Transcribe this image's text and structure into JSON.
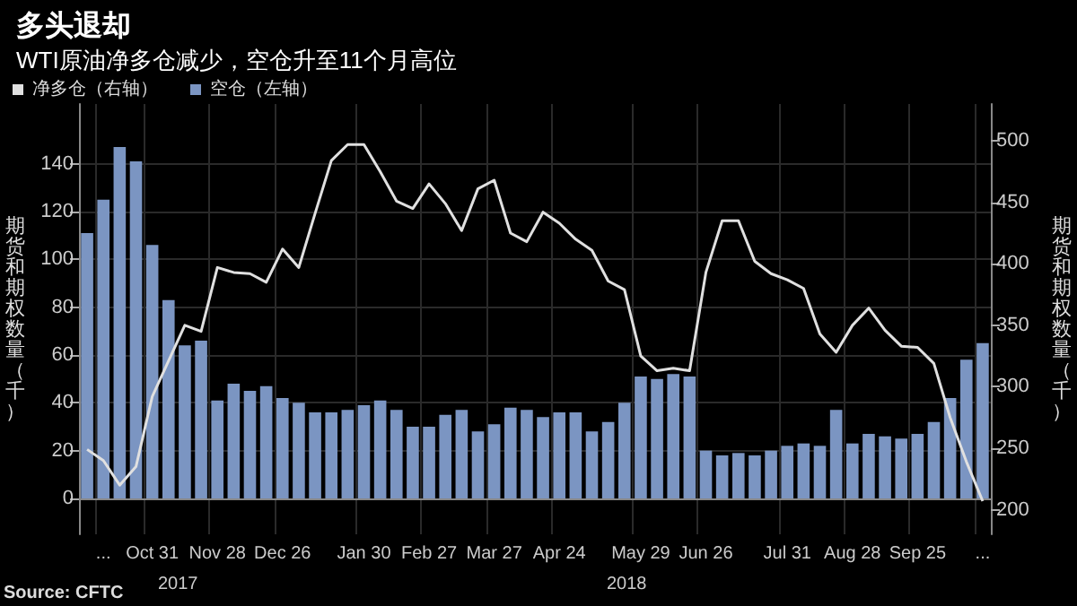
{
  "chart_data": {
    "type": "bar",
    "title": "多头退却",
    "subtitle": "WTI原油净多仓减少，空仓升至11个月高位",
    "ylabel": "期货和期权数量（千）",
    "y2label": "期货和期权数量（千）",
    "categories": [
      null,
      "...",
      null,
      null,
      "Oct 31",
      null,
      null,
      null,
      "Nov 28",
      null,
      null,
      null,
      "Dec 26",
      null,
      null,
      null,
      null,
      "Jan 30",
      null,
      null,
      null,
      "Feb 27",
      null,
      null,
      null,
      "Mar 27",
      null,
      null,
      null,
      "Apr 24",
      null,
      null,
      null,
      null,
      "May 29",
      null,
      null,
      null,
      "Jun 26",
      null,
      null,
      null,
      null,
      "Jul 31",
      null,
      null,
      null,
      "Aug 28",
      null,
      null,
      null,
      "Sep 25",
      null,
      null,
      null,
      "..."
    ],
    "series": [
      {
        "name": "净多仓（右轴）",
        "type": "line",
        "axis": "y2",
        "color": "#e0e0e0",
        "values": [
          249,
          240,
          220,
          235,
          292,
          321,
          350,
          345,
          397,
          393,
          392,
          385,
          412,
          397,
          441,
          484,
          497,
          497,
          475,
          451,
          445,
          465,
          449,
          427,
          461,
          468,
          425,
          418,
          442,
          433,
          420,
          411,
          386,
          379,
          325,
          313,
          315,
          313,
          393,
          435,
          435,
          402,
          392,
          387,
          380,
          343,
          328,
          350,
          364,
          346,
          333,
          332,
          319,
          275,
          239,
          207
        ]
      },
      {
        "name": "空仓（左轴）",
        "color": "#7b95c2",
        "values": [
          111,
          125,
          147,
          141,
          106,
          83,
          64,
          66,
          41,
          48,
          45,
          47,
          42,
          40,
          36,
          36,
          37,
          39,
          41,
          37,
          30,
          30,
          35,
          37,
          28,
          31,
          38,
          37,
          34,
          36,
          36,
          28,
          32,
          40,
          51,
          50,
          52,
          51,
          20,
          18,
          19,
          18,
          20,
          22,
          23,
          22,
          37,
          23,
          27,
          26,
          25,
          27,
          32,
          42,
          58,
          65
        ]
      }
    ],
    "ylim": [
      -15,
      165
    ],
    "yticks": [
      0,
      20,
      40,
      60,
      80,
      100,
      120,
      140
    ],
    "y2lim": [
      180,
      530
    ],
    "y2ticks": [
      200,
      250,
      300,
      350,
      400,
      450,
      500
    ],
    "annotations": [
      "2017",
      "2018",
      "Source: CFTC"
    ],
    "grid": true,
    "legend": "top left",
    "marker": "none",
    "line_style": "solid"
  }
}
